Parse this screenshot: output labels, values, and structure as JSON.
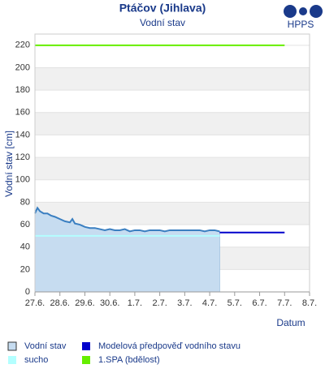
{
  "chart_data": {
    "type": "line",
    "title": "Ptáčov (Jihlava)",
    "subtitle": "Vodní stav",
    "logo": "HPPS",
    "y_label": "Vodní stav [cm]",
    "x_label": "Datum",
    "xlim": [
      0,
      11
    ],
    "xticks": [
      {
        "value": 0,
        "label": "27.6."
      },
      {
        "value": 1,
        "label": "28.6."
      },
      {
        "value": 2,
        "label": "29.6."
      },
      {
        "value": 3,
        "label": "30.6."
      },
      {
        "value": 4,
        "label": "1.7."
      },
      {
        "value": 5,
        "label": "2.7."
      },
      {
        "value": 6,
        "label": "3.7."
      },
      {
        "value": 7,
        "label": "4.7."
      },
      {
        "value": 8,
        "label": "5.7."
      },
      {
        "value": 9,
        "label": "6.7."
      },
      {
        "value": 10,
        "label": "7.7."
      },
      {
        "value": 11,
        "label": "8.7."
      }
    ],
    "ylim": [
      0,
      230
    ],
    "yticks": [
      0,
      20,
      40,
      60,
      80,
      100,
      120,
      140,
      160,
      180,
      200,
      220
    ],
    "grid": true,
    "series": [
      {
        "name": "Vodní stav",
        "color": "#3a7fc1",
        "fill": "#c6dcf0",
        "x": [
          0,
          0.1,
          0.2,
          0.35,
          0.5,
          0.65,
          0.8,
          1.0,
          1.2,
          1.4,
          1.5,
          1.6,
          1.8,
          2.0,
          2.2,
          2.4,
          2.6,
          2.8,
          3.0,
          3.2,
          3.4,
          3.6,
          3.8,
          4.0,
          4.2,
          4.4,
          4.6,
          4.8,
          5.0,
          5.2,
          5.4,
          5.6,
          5.8,
          6.0,
          6.2,
          6.4,
          6.6,
          6.8,
          7.0,
          7.2,
          7.4
        ],
        "values": [
          70,
          75,
          72,
          70,
          70,
          68,
          67,
          65,
          63,
          62,
          65,
          61,
          60,
          58,
          57,
          57,
          56,
          55,
          56,
          55,
          55,
          56,
          54,
          55,
          55,
          54,
          55,
          55,
          55,
          54,
          55,
          55,
          55,
          55,
          55,
          55,
          55,
          54,
          55,
          55,
          54
        ]
      },
      {
        "name": "sucho",
        "color": "#b3ffff",
        "x": [
          0,
          7.4
        ],
        "values": [
          50,
          50
        ]
      },
      {
        "name": "Modelová předpověď vodního stavu",
        "color": "#0000cc",
        "x": [
          7.4,
          10
        ],
        "values": [
          53,
          53
        ]
      },
      {
        "name": "1.SPA (bdělost)",
        "color": "#66ee00",
        "x": [
          0,
          10
        ],
        "values": [
          220,
          220
        ]
      }
    ]
  }
}
